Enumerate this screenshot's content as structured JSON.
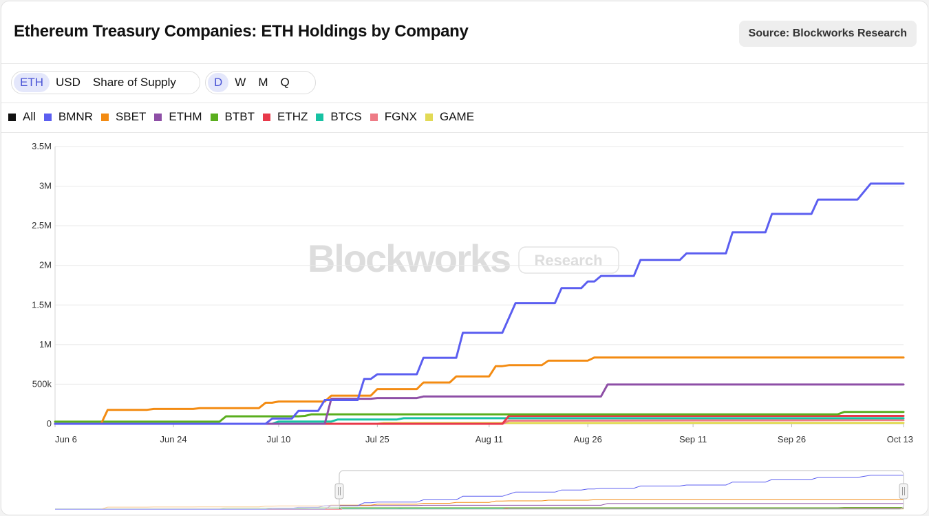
{
  "header": {
    "title": "Ethereum Treasury Companies: ETH Holdings by Company",
    "source": "Source: Blockworks Research"
  },
  "controls": {
    "unit_tabs": [
      "ETH",
      "USD",
      "Share of Supply"
    ],
    "unit_selected": "ETH",
    "period_tabs": [
      "D",
      "W",
      "M",
      "Q"
    ],
    "period_selected": "D"
  },
  "watermark": {
    "brand": "Blockworks",
    "badge": "Research"
  },
  "legend": [
    {
      "label": "All",
      "color": "#111111"
    },
    {
      "label": "BMNR",
      "color": "#5b5ef0"
    },
    {
      "label": "SBET",
      "color": "#f38b12"
    },
    {
      "label": "ETHM",
      "color": "#8e4fa6"
    },
    {
      "label": "BTBT",
      "color": "#5aae1e"
    },
    {
      "label": "ETHZ",
      "color": "#e8394a"
    },
    {
      "label": "BTCS",
      "color": "#17c2a3"
    },
    {
      "label": "FGNX",
      "color": "#ee7b86"
    },
    {
      "label": "GAME",
      "color": "#e2da56"
    }
  ],
  "chart_data": {
    "type": "line",
    "x_axis": "date",
    "x_range": [
      "2025-06-06",
      "2025-10-13"
    ],
    "x_tick_labels": [
      "Jun 6",
      "Jun 24",
      "Jul 10",
      "Jul 25",
      "Aug 11",
      "Aug 26",
      "Sep 11",
      "Sep 26",
      "Oct 13"
    ],
    "x_tick_dates": [
      "2025-06-06",
      "2025-06-24",
      "2025-07-10",
      "2025-07-25",
      "2025-08-11",
      "2025-08-26",
      "2025-09-11",
      "2025-09-26",
      "2025-10-13"
    ],
    "y_tick_labels": [
      "0",
      "500k",
      "1M",
      "1.5M",
      "2M",
      "2.5M",
      "3M",
      "3.5M"
    ],
    "y_tick_values": [
      0,
      500000,
      1000000,
      1500000,
      2000000,
      2500000,
      3000000,
      3500000
    ],
    "ylim": [
      0,
      3500000
    ],
    "grid": true,
    "series": [
      {
        "name": "BMNR",
        "color": "#5b5ef0",
        "points": [
          [
            "2025-06-06",
            0
          ],
          [
            "2025-07-08",
            0
          ],
          [
            "2025-07-09",
            66000
          ],
          [
            "2025-07-12",
            66000
          ],
          [
            "2025-07-13",
            163000
          ],
          [
            "2025-07-16",
            163000
          ],
          [
            "2025-07-17",
            300000
          ],
          [
            "2025-07-22",
            300000
          ],
          [
            "2025-07-23",
            566000
          ],
          [
            "2025-07-24",
            566000
          ],
          [
            "2025-07-25",
            625000
          ],
          [
            "2025-07-31",
            625000
          ],
          [
            "2025-08-01",
            833000
          ],
          [
            "2025-08-06",
            833000
          ],
          [
            "2025-08-07",
            1150000
          ],
          [
            "2025-08-13",
            1150000
          ],
          [
            "2025-08-15",
            1523000
          ],
          [
            "2025-08-21",
            1523000
          ],
          [
            "2025-08-22",
            1713000
          ],
          [
            "2025-08-25",
            1713000
          ],
          [
            "2025-08-26",
            1797000
          ],
          [
            "2025-08-27",
            1797000
          ],
          [
            "2025-08-28",
            1866000
          ],
          [
            "2025-09-02",
            1866000
          ],
          [
            "2025-09-03",
            2069000
          ],
          [
            "2025-09-09",
            2069000
          ],
          [
            "2025-09-10",
            2151000
          ],
          [
            "2025-09-16",
            2151000
          ],
          [
            "2025-09-17",
            2416000
          ],
          [
            "2025-09-22",
            2416000
          ],
          [
            "2025-09-23",
            2650000
          ],
          [
            "2025-09-29",
            2650000
          ],
          [
            "2025-09-30",
            2830000
          ],
          [
            "2025-10-06",
            2830000
          ],
          [
            "2025-10-08",
            3032000
          ],
          [
            "2025-10-13",
            3032000
          ]
        ]
      },
      {
        "name": "SBET",
        "color": "#f38b12",
        "points": [
          [
            "2025-06-06",
            0
          ],
          [
            "2025-06-13",
            0
          ],
          [
            "2025-06-14",
            176000
          ],
          [
            "2025-06-20",
            176000
          ],
          [
            "2025-06-21",
            188000
          ],
          [
            "2025-06-27",
            188000
          ],
          [
            "2025-06-28",
            198000
          ],
          [
            "2025-07-07",
            198000
          ],
          [
            "2025-07-08",
            266000
          ],
          [
            "2025-07-09",
            266000
          ],
          [
            "2025-07-10",
            281000
          ],
          [
            "2025-07-17",
            281000
          ],
          [
            "2025-07-18",
            355000
          ],
          [
            "2025-07-24",
            355000
          ],
          [
            "2025-07-25",
            438000
          ],
          [
            "2025-07-31",
            438000
          ],
          [
            "2025-08-01",
            521000
          ],
          [
            "2025-08-05",
            521000
          ],
          [
            "2025-08-06",
            598000
          ],
          [
            "2025-08-10",
            598000
          ],
          [
            "2025-08-11",
            598000
          ],
          [
            "2025-08-12",
            728000
          ],
          [
            "2025-08-13",
            728000
          ],
          [
            "2025-08-14",
            740000
          ],
          [
            "2025-08-19",
            740000
          ],
          [
            "2025-08-20",
            797000
          ],
          [
            "2025-08-26",
            797000
          ],
          [
            "2025-08-27",
            837000
          ],
          [
            "2025-10-13",
            837000
          ]
        ]
      },
      {
        "name": "ETHM",
        "color": "#8e4fa6",
        "points": [
          [
            "2025-06-06",
            0
          ],
          [
            "2025-07-17",
            0
          ],
          [
            "2025-07-18",
            316000
          ],
          [
            "2025-07-24",
            316000
          ],
          [
            "2025-07-25",
            325000
          ],
          [
            "2025-07-31",
            325000
          ],
          [
            "2025-08-01",
            345000
          ],
          [
            "2025-08-25",
            345000
          ],
          [
            "2025-08-28",
            345000
          ],
          [
            "2025-08-29",
            496000
          ],
          [
            "2025-10-13",
            496000
          ]
        ]
      },
      {
        "name": "BTBT",
        "color": "#5aae1e",
        "points": [
          [
            "2025-06-06",
            27000
          ],
          [
            "2025-07-01",
            27000
          ],
          [
            "2025-07-02",
            95000
          ],
          [
            "2025-07-13",
            95000
          ],
          [
            "2025-07-14",
            100000
          ],
          [
            "2025-07-15",
            120000
          ],
          [
            "2025-10-03",
            120000
          ],
          [
            "2025-10-04",
            150000
          ],
          [
            "2025-10-13",
            150000
          ]
        ]
      },
      {
        "name": "ETHZ",
        "color": "#e8394a",
        "points": [
          [
            "2025-06-06",
            0
          ],
          [
            "2025-08-13",
            0
          ],
          [
            "2025-08-14",
            100000
          ],
          [
            "2025-10-13",
            100000
          ]
        ]
      },
      {
        "name": "BTCS",
        "color": "#17c2a3",
        "points": [
          [
            "2025-06-06",
            0
          ],
          [
            "2025-07-09",
            0
          ],
          [
            "2025-07-10",
            29000
          ],
          [
            "2025-07-18",
            29000
          ],
          [
            "2025-07-19",
            55000
          ],
          [
            "2025-07-28",
            55000
          ],
          [
            "2025-07-29",
            70000
          ],
          [
            "2025-10-13",
            70000
          ]
        ]
      },
      {
        "name": "FGNX",
        "color": "#ee7b86",
        "points": [
          [
            "2025-06-06",
            0
          ],
          [
            "2025-08-13",
            0
          ],
          [
            "2025-08-14",
            40000
          ],
          [
            "2025-10-13",
            47000
          ]
        ]
      },
      {
        "name": "GAME",
        "color": "#e2da56",
        "points": [
          [
            "2025-06-06",
            0
          ],
          [
            "2025-07-25",
            0
          ],
          [
            "2025-07-26",
            10000
          ],
          [
            "2025-10-13",
            12000
          ]
        ]
      }
    ]
  }
}
